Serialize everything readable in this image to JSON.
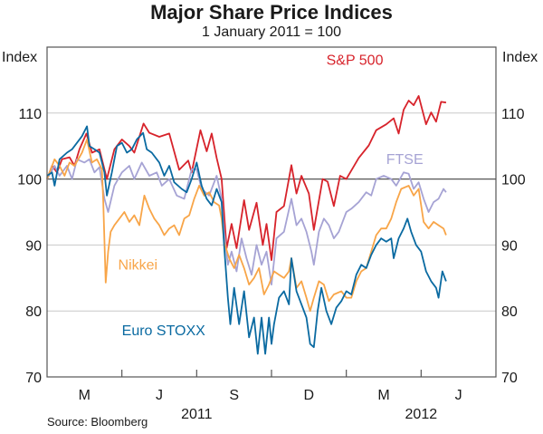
{
  "chart_data": {
    "type": "line",
    "title": "Major Share Price Indices",
    "subtitle": "1 January 2011 = 100",
    "ylabel_left": "Index",
    "ylabel_right": "Index",
    "source": "Source: Bloomberg",
    "x_units": "months since 1 January 2011",
    "xlim": [
      0,
      18
    ],
    "ylim": [
      70,
      120
    ],
    "yticks": [
      70,
      80,
      90,
      100,
      110
    ],
    "reference_line": 100,
    "grid": true,
    "quarter_ticks": [
      3,
      6,
      9,
      12,
      15
    ],
    "month_labels": [
      {
        "label": "M",
        "x": 1.5
      },
      {
        "label": "J",
        "x": 4.5
      },
      {
        "label": "S",
        "x": 7.5
      },
      {
        "label": "D",
        "x": 10.5
      },
      {
        "label": "M",
        "x": 13.5
      },
      {
        "label": "J",
        "x": 16.5
      }
    ],
    "year_labels": [
      {
        "label": "2011",
        "x": 6
      },
      {
        "label": "2012",
        "x": 15
      }
    ],
    "series": [
      {
        "name": "S&P 500",
        "color": "#d7232b",
        "label_at": [
          11.2,
          117.3
        ],
        "x": [
          0,
          0.2,
          0.4,
          0.6,
          0.9,
          1.1,
          1.3,
          1.58,
          1.8,
          2.1,
          2.4,
          2.7,
          3.0,
          3.3,
          3.5,
          3.87,
          4.1,
          4.5,
          4.9,
          5.3,
          5.66,
          5.8,
          6.15,
          6.4,
          6.6,
          6.8,
          7.0,
          7.2,
          7.4,
          7.6,
          7.9,
          8.1,
          8.4,
          8.65,
          8.8,
          9.0,
          9.2,
          9.5,
          9.8,
          10.0,
          10.2,
          10.5,
          10.7,
          11.05,
          11.25,
          11.5,
          11.75,
          12.0,
          12.5,
          12.9,
          13.2,
          13.6,
          13.9,
          14.1,
          14.3,
          14.5,
          14.7,
          14.9,
          15.2,
          15.4,
          15.6,
          15.8,
          16.0
        ],
        "y": [
          100,
          102,
          101,
          103,
          103.3,
          102,
          104.5,
          106.9,
          104,
          104.5,
          100,
          104.5,
          106,
          105,
          104,
          108.4,
          107,
          106.4,
          106.9,
          101.4,
          102.8,
          101,
          107.4,
          104.2,
          106.9,
          103.2,
          100,
          89.5,
          93.2,
          89.5,
          96.8,
          92.3,
          96.4,
          90,
          93.2,
          87.7,
          95,
          95.9,
          102.1,
          97.8,
          100.5,
          97.8,
          92.3,
          100,
          99.6,
          95.9,
          100.5,
          100,
          103.2,
          105.1,
          107.4,
          108.3,
          109.2,
          106.9,
          110.5,
          111.9,
          111.2,
          112.6,
          108.3,
          110.1,
          108.7,
          111.7,
          111.6
        ]
      },
      {
        "name": "FTSE",
        "color": "#a6a3d4",
        "label_at": [
          13.6,
          102.3
        ],
        "x": [
          0,
          0.3,
          0.5,
          0.8,
          1.0,
          1.2,
          1.5,
          1.7,
          1.9,
          2.1,
          2.3,
          2.45,
          2.7,
          3.0,
          3.3,
          3.5,
          3.8,
          4.1,
          4.4,
          4.6,
          4.9,
          5.2,
          5.5,
          5.8,
          6.0,
          6.2,
          6.5,
          6.8,
          7.0,
          7.1,
          7.25,
          7.4,
          7.6,
          7.8,
          8.0,
          8.2,
          8.4,
          8.6,
          8.8,
          9.0,
          9.2,
          9.5,
          9.8,
          10.0,
          10.2,
          10.4,
          10.6,
          10.7,
          10.9,
          11.1,
          11.3,
          11.5,
          11.7,
          12.0,
          12.2,
          12.5,
          12.8,
          13.0,
          13.2,
          13.5,
          13.8,
          14.0,
          14.3,
          14.5,
          14.7,
          14.9,
          15.1,
          15.3,
          15.5,
          15.7,
          15.9,
          16.0
        ],
        "y": [
          100,
          102,
          100.5,
          102,
          100,
          103,
          102.5,
          103,
          101,
          101.8,
          97,
          95,
          99,
          101,
          102,
          100,
          102.5,
          100.5,
          101,
          99,
          100,
          97.5,
          97,
          101.5,
          101.5,
          98.5,
          97.5,
          100.5,
          97,
          92,
          87,
          89,
          86,
          91,
          88,
          85.5,
          90,
          87,
          89,
          84,
          91,
          92,
          97,
          93,
          94,
          92,
          89,
          87,
          92,
          94,
          93,
          91,
          92,
          95,
          95.5,
          96.5,
          98,
          97.5,
          100,
          100.5,
          100,
          99,
          101,
          100.8,
          98.5,
          99.5,
          97,
          95,
          96.5,
          97,
          98.5,
          98
        ]
      },
      {
        "name": "Nikkei",
        "color": "#f8a548",
        "label_at": [
          2.85,
          86.3
        ],
        "x": [
          0,
          0.3,
          0.5,
          0.7,
          0.9,
          1.1,
          1.4,
          1.6,
          1.8,
          2.0,
          2.2,
          2.25,
          2.35,
          2.45,
          2.55,
          2.7,
          2.9,
          3.1,
          3.3,
          3.5,
          3.7,
          3.9,
          4.1,
          4.3,
          4.5,
          4.7,
          4.9,
          5.1,
          5.3,
          5.5,
          5.7,
          5.9,
          6.1,
          6.3,
          6.5,
          6.7,
          6.9,
          7.0,
          7.1,
          7.3,
          7.5,
          7.7,
          7.9,
          8.1,
          8.3,
          8.5,
          8.7,
          8.9,
          9.1,
          9.3,
          9.5,
          9.7,
          9.8,
          10.0,
          10.2,
          10.4,
          10.55,
          10.7,
          10.9,
          11.1,
          11.3,
          11.5,
          11.8,
          12.0,
          12.2,
          12.4,
          12.6,
          12.8,
          13.0,
          13.2,
          13.4,
          13.6,
          13.8,
          14.0,
          14.2,
          14.5,
          14.7,
          14.9,
          15.1,
          15.3,
          15.5,
          15.7,
          15.9,
          16.0
        ],
        "y": [
          100,
          103,
          102,
          100.5,
          102.5,
          102,
          104,
          106,
          102.5,
          103,
          101.5,
          97,
          84.3,
          89,
          92,
          93,
          94,
          95,
          93.5,
          94.5,
          93,
          97.5,
          95.5,
          94,
          93,
          91.5,
          92.5,
          93,
          91.5,
          94,
          94.5,
          97,
          99,
          97.5,
          98,
          96.5,
          96,
          94,
          90.5,
          88,
          86.5,
          88.5,
          86.5,
          84,
          85,
          86.5,
          82.5,
          84,
          86,
          85.5,
          85,
          86,
          88,
          83.5,
          84.5,
          82,
          80,
          82,
          84.5,
          84,
          81.5,
          82.5,
          83,
          82,
          82,
          84.5,
          86,
          86.5,
          89,
          91.5,
          92.5,
          92.5,
          94,
          96.5,
          98.5,
          99,
          97.5,
          98.5,
          93.5,
          92.5,
          93.5,
          93,
          92.5,
          91.5
        ]
      },
      {
        "name": "Euro STOXX",
        "color": "#0a6aa1",
        "label_at": [
          3.0,
          76.3
        ],
        "x": [
          0,
          0.2,
          0.3,
          0.5,
          0.8,
          1.0,
          1.2,
          1.4,
          1.6,
          1.7,
          1.9,
          2.1,
          2.3,
          2.4,
          2.6,
          2.8,
          3.0,
          3.2,
          3.4,
          3.6,
          3.85,
          4.0,
          4.2,
          4.5,
          4.7,
          4.9,
          5.1,
          5.4,
          5.6,
          5.8,
          6.0,
          6.2,
          6.4,
          6.6,
          6.8,
          7.0,
          7.1,
          7.25,
          7.35,
          7.5,
          7.7,
          7.9,
          8.1,
          8.3,
          8.45,
          8.6,
          8.75,
          8.9,
          9.0,
          9.1,
          9.3,
          9.5,
          9.7,
          9.8,
          10.0,
          10.2,
          10.4,
          10.55,
          10.7,
          10.85,
          11.0,
          11.2,
          11.4,
          11.6,
          11.8,
          12.0,
          12.2,
          12.4,
          12.6,
          12.8,
          13.0,
          13.2,
          13.4,
          13.6,
          13.8,
          13.9,
          14.1,
          14.3,
          14.45,
          14.6,
          14.8,
          15.0,
          15.2,
          15.4,
          15.6,
          15.7,
          15.85,
          16.0
        ],
        "y": [
          100.5,
          101,
          99,
          103,
          104,
          104.5,
          105.5,
          106.5,
          108,
          105,
          104.5,
          104,
          101,
          97.5,
          101,
          105,
          105.5,
          104,
          104.5,
          106,
          107,
          104.5,
          104,
          102.5,
          100.5,
          102,
          99.5,
          98.5,
          98,
          100,
          102.5,
          99,
          97,
          96,
          98.5,
          96.5,
          90,
          82,
          78,
          83.5,
          78,
          83,
          76,
          79,
          73.5,
          79,
          73.5,
          79,
          75,
          78,
          82,
          83,
          81,
          88,
          83,
          81,
          79,
          75,
          74.5,
          80,
          83.5,
          80,
          78,
          80.5,
          81.5,
          83,
          82.5,
          85.5,
          87,
          86.5,
          88.5,
          90,
          91,
          90.5,
          91,
          88,
          91,
          92.5,
          94,
          92,
          90,
          89,
          86,
          84.5,
          83.5,
          82,
          86,
          84.5
        ]
      }
    ]
  }
}
